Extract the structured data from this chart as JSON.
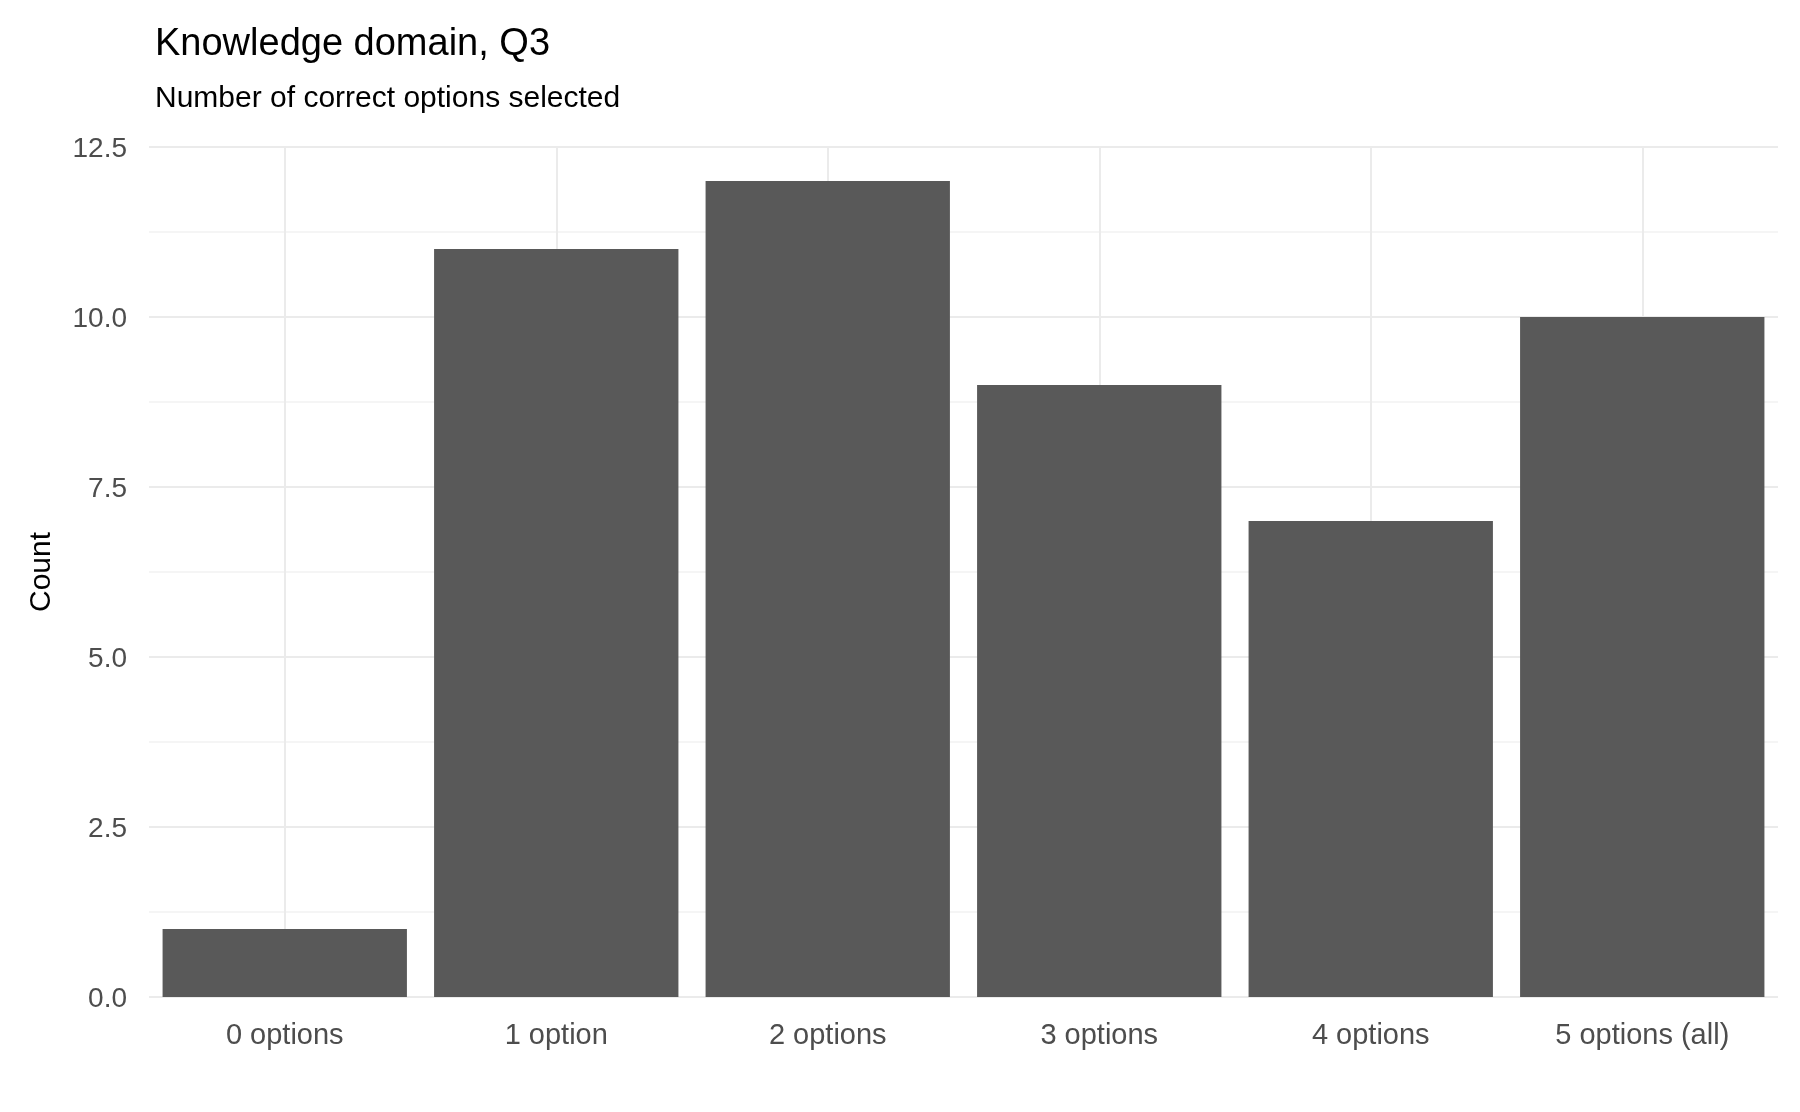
{
  "chart_data": {
    "type": "bar",
    "title": "Knowledge domain, Q3",
    "subtitle": "Number of correct options selected",
    "ylabel": "Count",
    "categories": [
      "0 options",
      "1 option",
      "2 options",
      "3 options",
      "4 options",
      "5 options (all)"
    ],
    "values": [
      1,
      11,
      12,
      9,
      7,
      10
    ],
    "color": "#595959",
    "ylim": [
      0,
      12.5
    ],
    "yticks": [
      {
        "value": 0,
        "label": "0.0"
      },
      {
        "value": 2.5,
        "label": "2.5"
      },
      {
        "value": 5,
        "label": "5.0"
      },
      {
        "value": 7.5,
        "label": "7.5"
      },
      {
        "value": 10,
        "label": "10.0"
      },
      {
        "value": 12.5,
        "label": "12.5"
      }
    ],
    "grid": true
  }
}
